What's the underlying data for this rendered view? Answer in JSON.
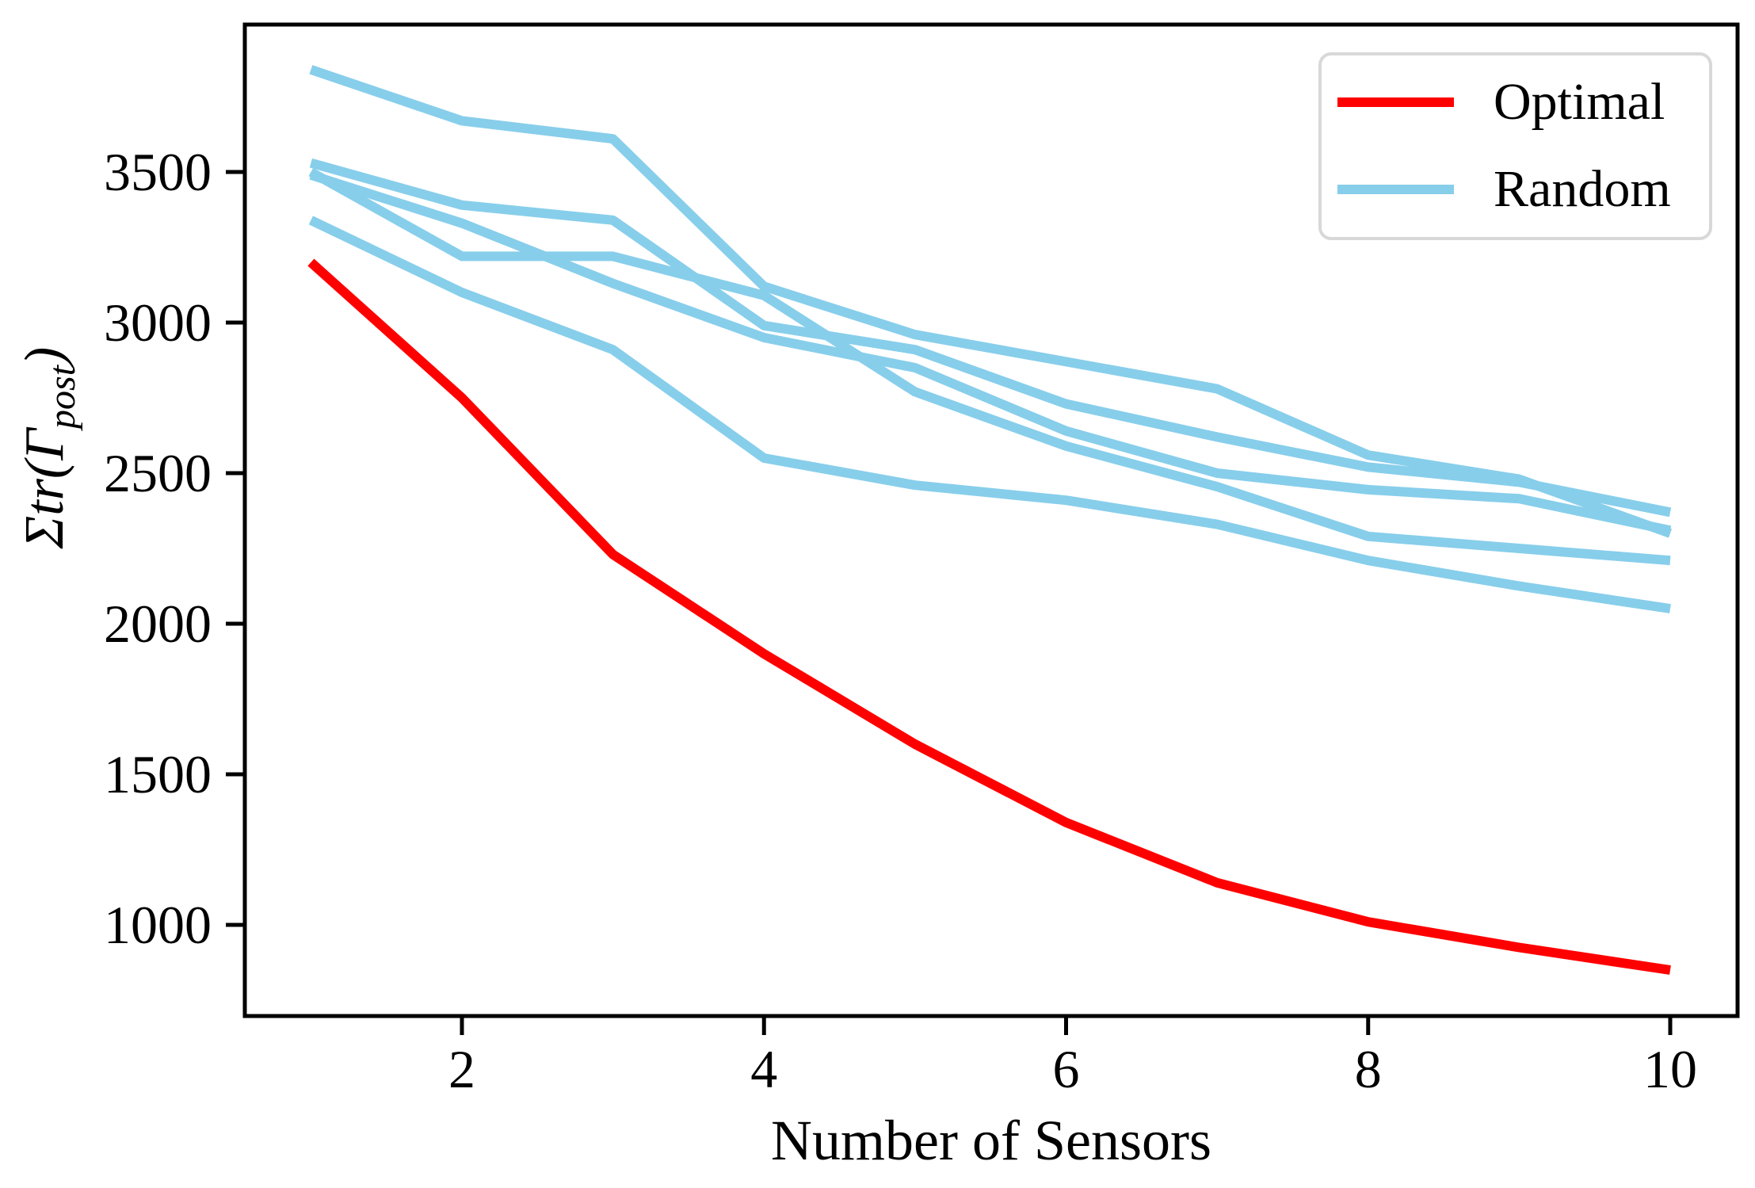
{
  "figure": {
    "background": "#ffffff",
    "plot_border_color": "#000000"
  },
  "labels": {
    "xlabel": "Number of Sensors",
    "ylabel_prefix": "Σtr(Γ",
    "ylabel_sub": "post",
    "ylabel_suffix": ")"
  },
  "legend": {
    "position": "upper right",
    "items": [
      {
        "label": "Optimal",
        "color": "#ff0000"
      },
      {
        "label": "Random",
        "color": "#87ceeb"
      }
    ]
  },
  "chart_data": {
    "type": "line",
    "title": "",
    "xlabel": "Number of Sensors",
    "ylabel": "Σtr(Γ_post)",
    "grid": false,
    "legend_position": "upper right",
    "x": [
      1,
      2,
      3,
      4,
      5,
      6,
      7,
      8,
      9,
      10
    ],
    "x_ticks": [
      2,
      4,
      6,
      8,
      10
    ],
    "y_ticks": [
      1000,
      1500,
      2000,
      2500,
      3000,
      3500
    ],
    "xlim": [
      0.55,
      10.45
    ],
    "ylim": [
      700,
      4020
    ],
    "series": [
      {
        "name": "Random",
        "color": "#87ceeb",
        "width": 12,
        "in_legend": true,
        "values": [
          3840,
          3670,
          3610,
          3120,
          2960,
          2870,
          2780,
          2560,
          2480,
          2300
        ]
      },
      {
        "name": "Random",
        "color": "#87ceeb",
        "width": 12,
        "in_legend": false,
        "values": [
          3530,
          3390,
          3340,
          2990,
          2910,
          2730,
          2620,
          2520,
          2470,
          2370
        ]
      },
      {
        "name": "Random",
        "color": "#87ceeb",
        "width": 12,
        "in_legend": false,
        "values": [
          3490,
          3330,
          3130,
          2950,
          2850,
          2640,
          2500,
          2445,
          2415,
          2310
        ]
      },
      {
        "name": "Random",
        "color": "#87ceeb",
        "width": 12,
        "in_legend": false,
        "values": [
          3500,
          3220,
          3220,
          3090,
          2770,
          2590,
          2455,
          2290,
          2250,
          2210
        ]
      },
      {
        "name": "Random",
        "color": "#87ceeb",
        "width": 12,
        "in_legend": false,
        "values": [
          3340,
          3100,
          2910,
          2550,
          2460,
          2410,
          2330,
          2210,
          2125,
          2050
        ]
      },
      {
        "name": "Optimal",
        "color": "#ff0000",
        "width": 12,
        "in_legend": true,
        "values": [
          3200,
          2750,
          2230,
          1900,
          1600,
          1340,
          1140,
          1010,
          925,
          850
        ]
      }
    ]
  }
}
